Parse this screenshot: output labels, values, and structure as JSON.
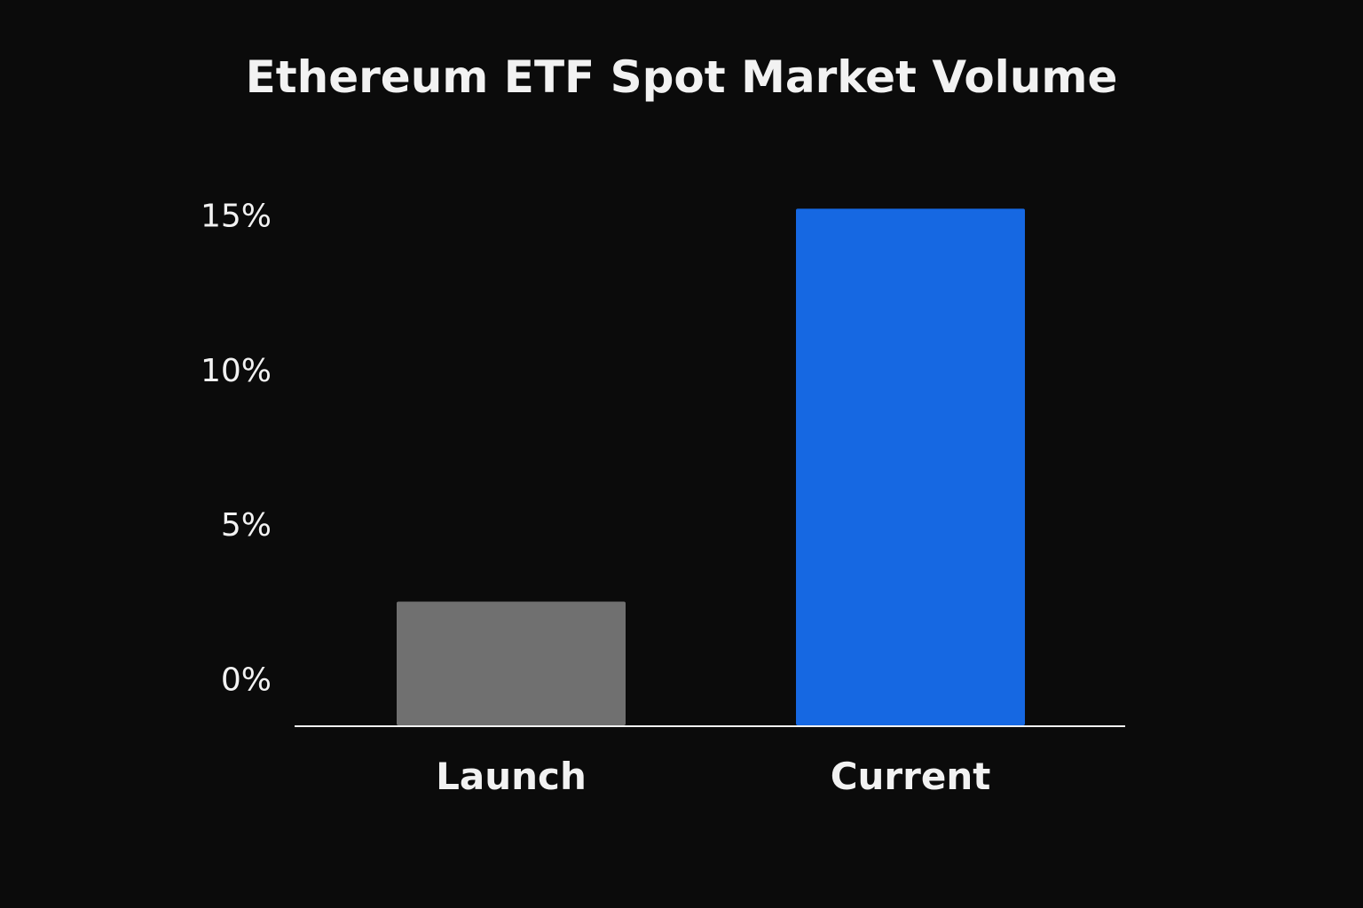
{
  "chart_data": {
    "type": "bar",
    "title": "Ethereum ETF Spot Market Volume",
    "xlabel": "",
    "ylabel": "",
    "categories": [
      "Launch",
      "Current"
    ],
    "values": [
      2.5,
      15.2
    ],
    "bar_colors": [
      "#707070",
      "#1668e2"
    ],
    "ylim": [
      -1.5,
      16.5
    ],
    "yticks": [
      0,
      5,
      10,
      15
    ],
    "ytick_labels": [
      "0%",
      "5%",
      "10%",
      "15%"
    ],
    "grid": false,
    "legend": "none",
    "background": "#0b0b0b",
    "axis_color": "#f2f2f2"
  }
}
